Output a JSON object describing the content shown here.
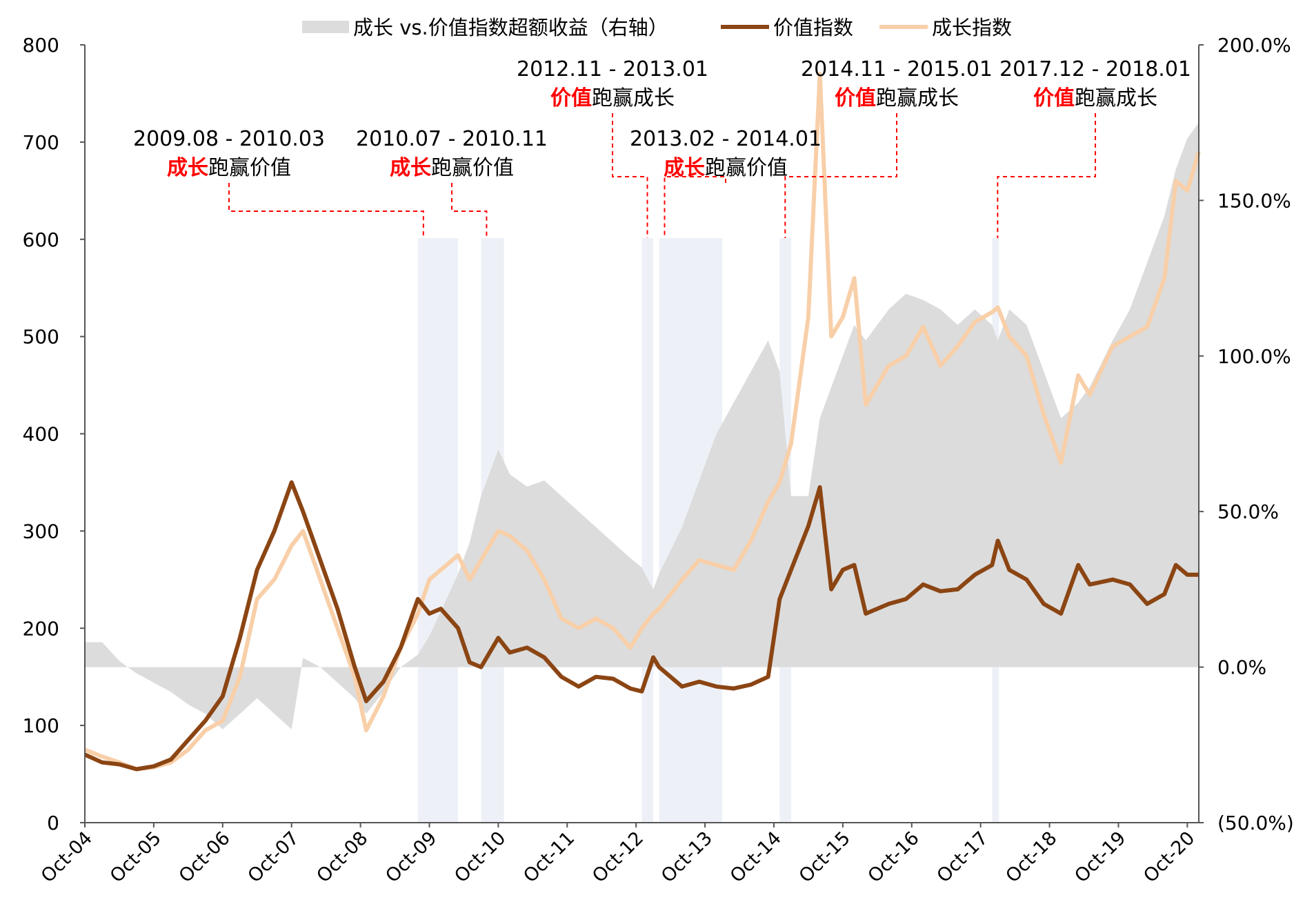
{
  "chart_data": {
    "type": "line",
    "title": "",
    "legend": {
      "placement": "top",
      "items": [
        {
          "label": "成长 vs.价值指数超额收益（右轴）",
          "kind": "area",
          "color": "#dcdcdc"
        },
        {
          "label": "价值指数",
          "kind": "line",
          "color": "#8b4513"
        },
        {
          "label": "成长指数",
          "kind": "line",
          "color": "#f8cfa8"
        }
      ]
    },
    "x_axis": {
      "type": "date",
      "range": [
        "2004-10",
        "2020-12"
      ],
      "tick_labels": [
        "Oct-04",
        "Oct-05",
        "Oct-06",
        "Oct-07",
        "Oct-08",
        "Oct-09",
        "Oct-10",
        "Oct-11",
        "Oct-12",
        "Oct-13",
        "Oct-14",
        "Oct-15",
        "Oct-16",
        "Oct-17",
        "Oct-18",
        "Oct-19",
        "Oct-20"
      ]
    },
    "y_axis_left": {
      "range": [
        0,
        800
      ],
      "ticks": [
        0,
        100,
        200,
        300,
        400,
        500,
        600,
        700,
        800
      ],
      "tick_labels": [
        "0",
        "100",
        "200",
        "300",
        "400",
        "500",
        "600",
        "700",
        "800"
      ]
    },
    "y_axis_right": {
      "range": [
        -0.5,
        2.0
      ],
      "ticks": [
        -0.5,
        0,
        0.5,
        1.0,
        1.5,
        2.0
      ],
      "tick_labels": [
        "(50.0%)",
        "0.0%",
        "50.0%",
        "100.0%",
        "150.0%",
        "200.0%"
      ]
    },
    "grid": false,
    "series": [
      {
        "name": "价值指数",
        "axis": "left",
        "color": "#8b4513",
        "points": [
          [
            "2004-10",
            70
          ],
          [
            "2005-01",
            62
          ],
          [
            "2005-04",
            60
          ],
          [
            "2005-07",
            55
          ],
          [
            "2005-10",
            58
          ],
          [
            "2006-01",
            65
          ],
          [
            "2006-04",
            85
          ],
          [
            "2006-07",
            105
          ],
          [
            "2006-10",
            130
          ],
          [
            "2007-01",
            190
          ],
          [
            "2007-04",
            260
          ],
          [
            "2007-07",
            300
          ],
          [
            "2007-10",
            350
          ],
          [
            "2007-12",
            320
          ],
          [
            "2008-03",
            270
          ],
          [
            "2008-06",
            220
          ],
          [
            "2008-09",
            160
          ],
          [
            "2008-11",
            125
          ],
          [
            "2009-02",
            145
          ],
          [
            "2009-05",
            180
          ],
          [
            "2009-08",
            230
          ],
          [
            "2009-10",
            215
          ],
          [
            "2009-12",
            220
          ],
          [
            "2010-03",
            200
          ],
          [
            "2010-05",
            165
          ],
          [
            "2010-07",
            160
          ],
          [
            "2010-10",
            190
          ],
          [
            "2010-12",
            175
          ],
          [
            "2011-03",
            180
          ],
          [
            "2011-06",
            170
          ],
          [
            "2011-09",
            150
          ],
          [
            "2011-12",
            140
          ],
          [
            "2012-03",
            150
          ],
          [
            "2012-06",
            148
          ],
          [
            "2012-09",
            138
          ],
          [
            "2012-11",
            135
          ],
          [
            "2013-01",
            170
          ],
          [
            "2013-02",
            160
          ],
          [
            "2013-06",
            140
          ],
          [
            "2013-09",
            145
          ],
          [
            "2013-12",
            140
          ],
          [
            "2014-03",
            138
          ],
          [
            "2014-06",
            142
          ],
          [
            "2014-09",
            150
          ],
          [
            "2014-11",
            230
          ],
          [
            "2015-01",
            260
          ],
          [
            "2015-04",
            305
          ],
          [
            "2015-06",
            345
          ],
          [
            "2015-08",
            240
          ],
          [
            "2015-10",
            260
          ],
          [
            "2015-12",
            265
          ],
          [
            "2016-02",
            215
          ],
          [
            "2016-06",
            225
          ],
          [
            "2016-09",
            230
          ],
          [
            "2016-12",
            245
          ],
          [
            "2017-03",
            238
          ],
          [
            "2017-06",
            240
          ],
          [
            "2017-09",
            255
          ],
          [
            "2017-12",
            265
          ],
          [
            "2018-01",
            290
          ],
          [
            "2018-03",
            260
          ],
          [
            "2018-06",
            250
          ],
          [
            "2018-09",
            225
          ],
          [
            "2018-12",
            215
          ],
          [
            "2019-03",
            265
          ],
          [
            "2019-05",
            245
          ],
          [
            "2019-09",
            250
          ],
          [
            "2019-12",
            245
          ],
          [
            "2020-03",
            225
          ],
          [
            "2020-06",
            235
          ],
          [
            "2020-08",
            265
          ],
          [
            "2020-10",
            255
          ],
          [
            "2020-12",
            255
          ]
        ]
      },
      {
        "name": "成长指数",
        "axis": "left",
        "color": "#f8cfa8",
        "points": [
          [
            "2004-10",
            75
          ],
          [
            "2005-01",
            68
          ],
          [
            "2005-04",
            62
          ],
          [
            "2005-07",
            55
          ],
          [
            "2005-10",
            57
          ],
          [
            "2006-01",
            62
          ],
          [
            "2006-04",
            75
          ],
          [
            "2006-07",
            95
          ],
          [
            "2006-10",
            105
          ],
          [
            "2007-01",
            150
          ],
          [
            "2007-04",
            230
          ],
          [
            "2007-07",
            250
          ],
          [
            "2007-10",
            285
          ],
          [
            "2007-12",
            300
          ],
          [
            "2008-03",
            250
          ],
          [
            "2008-06",
            200
          ],
          [
            "2008-09",
            150
          ],
          [
            "2008-11",
            95
          ],
          [
            "2009-02",
            130
          ],
          [
            "2009-05",
            180
          ],
          [
            "2009-08",
            215
          ],
          [
            "2009-10",
            250
          ],
          [
            "2009-12",
            260
          ],
          [
            "2010-03",
            275
          ],
          [
            "2010-05",
            250
          ],
          [
            "2010-07",
            270
          ],
          [
            "2010-10",
            300
          ],
          [
            "2010-12",
            295
          ],
          [
            "2011-03",
            280
          ],
          [
            "2011-06",
            250
          ],
          [
            "2011-09",
            210
          ],
          [
            "2011-12",
            200
          ],
          [
            "2012-03",
            210
          ],
          [
            "2012-06",
            200
          ],
          [
            "2012-09",
            180
          ],
          [
            "2012-11",
            200
          ],
          [
            "2013-01",
            215
          ],
          [
            "2013-02",
            220
          ],
          [
            "2013-06",
            250
          ],
          [
            "2013-09",
            270
          ],
          [
            "2013-12",
            265
          ],
          [
            "2014-03",
            260
          ],
          [
            "2014-06",
            290
          ],
          [
            "2014-09",
            330
          ],
          [
            "2014-11",
            350
          ],
          [
            "2015-01",
            390
          ],
          [
            "2015-04",
            520
          ],
          [
            "2015-06",
            770
          ],
          [
            "2015-08",
            500
          ],
          [
            "2015-10",
            520
          ],
          [
            "2015-12",
            560
          ],
          [
            "2016-02",
            430
          ],
          [
            "2016-06",
            470
          ],
          [
            "2016-09",
            480
          ],
          [
            "2016-12",
            510
          ],
          [
            "2017-03",
            470
          ],
          [
            "2017-06",
            490
          ],
          [
            "2017-09",
            515
          ],
          [
            "2017-12",
            525
          ],
          [
            "2018-01",
            530
          ],
          [
            "2018-03",
            500
          ],
          [
            "2018-06",
            480
          ],
          [
            "2018-09",
            420
          ],
          [
            "2018-12",
            370
          ],
          [
            "2019-03",
            460
          ],
          [
            "2019-05",
            440
          ],
          [
            "2019-09",
            490
          ],
          [
            "2019-12",
            500
          ],
          [
            "2020-03",
            510
          ],
          [
            "2020-06",
            560
          ],
          [
            "2020-08",
            660
          ],
          [
            "2020-10",
            650
          ],
          [
            "2020-12",
            690
          ]
        ]
      },
      {
        "name": "成长 vs.价值指数超额收益（右轴）",
        "axis": "right",
        "type": "area",
        "color": "#dcdcdc",
        "points": [
          [
            "2004-10",
            0.08
          ],
          [
            "2005-01",
            0.08
          ],
          [
            "2005-04",
            0.02
          ],
          [
            "2005-07",
            -0.02
          ],
          [
            "2005-10",
            -0.05
          ],
          [
            "2006-01",
            -0.08
          ],
          [
            "2006-04",
            -0.12
          ],
          [
            "2006-07",
            -0.15
          ],
          [
            "2006-10",
            -0.2
          ],
          [
            "2007-01",
            -0.15
          ],
          [
            "2007-04",
            -0.1
          ],
          [
            "2007-07",
            -0.15
          ],
          [
            "2007-10",
            -0.2
          ],
          [
            "2007-12",
            0.03
          ],
          [
            "2008-03",
            0.0
          ],
          [
            "2008-06",
            -0.05
          ],
          [
            "2008-09",
            -0.1
          ],
          [
            "2008-11",
            -0.15
          ],
          [
            "2009-02",
            -0.08
          ],
          [
            "2009-05",
            0.0
          ],
          [
            "2009-08",
            0.04
          ],
          [
            "2009-10",
            0.1
          ],
          [
            "2009-12",
            0.18
          ],
          [
            "2010-03",
            0.3
          ],
          [
            "2010-05",
            0.4
          ],
          [
            "2010-07",
            0.55
          ],
          [
            "2010-10",
            0.7
          ],
          [
            "2010-12",
            0.62
          ],
          [
            "2011-03",
            0.58
          ],
          [
            "2011-06",
            0.6
          ],
          [
            "2011-09",
            0.55
          ],
          [
            "2011-12",
            0.5
          ],
          [
            "2012-03",
            0.45
          ],
          [
            "2012-06",
            0.4
          ],
          [
            "2012-09",
            0.35
          ],
          [
            "2012-11",
            0.32
          ],
          [
            "2013-01",
            0.25
          ],
          [
            "2013-02",
            0.3
          ],
          [
            "2013-06",
            0.45
          ],
          [
            "2013-09",
            0.6
          ],
          [
            "2013-12",
            0.75
          ],
          [
            "2014-03",
            0.85
          ],
          [
            "2014-06",
            0.95
          ],
          [
            "2014-09",
            1.05
          ],
          [
            "2014-11",
            0.95
          ],
          [
            "2015-01",
            0.55
          ],
          [
            "2015-04",
            0.55
          ],
          [
            "2015-06",
            0.8
          ],
          [
            "2015-08",
            0.9
          ],
          [
            "2015-10",
            1.0
          ],
          [
            "2015-12",
            1.1
          ],
          [
            "2016-02",
            1.05
          ],
          [
            "2016-06",
            1.15
          ],
          [
            "2016-09",
            1.2
          ],
          [
            "2016-12",
            1.18
          ],
          [
            "2017-03",
            1.15
          ],
          [
            "2017-06",
            1.1
          ],
          [
            "2017-09",
            1.15
          ],
          [
            "2017-12",
            1.1
          ],
          [
            "2018-01",
            1.05
          ],
          [
            "2018-03",
            1.15
          ],
          [
            "2018-06",
            1.1
          ],
          [
            "2018-09",
            0.95
          ],
          [
            "2018-12",
            0.8
          ],
          [
            "2019-03",
            0.85
          ],
          [
            "2019-05",
            0.9
          ],
          [
            "2019-09",
            1.05
          ],
          [
            "2019-12",
            1.15
          ],
          [
            "2020-03",
            1.3
          ],
          [
            "2020-06",
            1.45
          ],
          [
            "2020-08",
            1.6
          ],
          [
            "2020-10",
            1.7
          ],
          [
            "2020-12",
            1.75
          ]
        ]
      }
    ],
    "shaded_periods": [
      {
        "start": "2009-08",
        "end": "2010-03",
        "color": "#edf1f7"
      },
      {
        "start": "2010-07",
        "end": "2010-11",
        "color": "#edf1f7"
      },
      {
        "start": "2012-11",
        "end": "2013-01",
        "color": "#edf1f7"
      },
      {
        "start": "2013-02",
        "end": "2014-01",
        "color": "#edf1f7"
      },
      {
        "start": "2014-11",
        "end": "2015-01",
        "color": "#edf1f7"
      },
      {
        "start": "2017-12",
        "end": "2018-01",
        "color": "#edf1f7"
      }
    ],
    "annotations": [
      {
        "date_text": "2009.08 - 2010.03",
        "highlight": "成长",
        "rest": "跑赢价值",
        "anchor": "2009-08"
      },
      {
        "date_text": "2010.07 - 2010.11",
        "highlight": "成长",
        "rest": "跑赢价值",
        "anchor": "2010-07"
      },
      {
        "date_text": "2012.11 - 2013.01",
        "highlight": "价值",
        "rest": "跑赢成长",
        "anchor": "2012-11"
      },
      {
        "date_text": "2013.02 - 2014.01",
        "highlight": "成长",
        "rest": "跑赢价值",
        "anchor": "2013-02"
      },
      {
        "date_text": "2014.11 - 2015.01",
        "highlight": "价值",
        "rest": "跑赢成长",
        "anchor": "2014-11"
      },
      {
        "date_text": "2017.12 - 2018.01",
        "highlight": "价值",
        "rest": "跑赢成长",
        "anchor": "2017-12"
      }
    ],
    "colors": {
      "axis": "#555555",
      "highlight_text": "#ff0000",
      "dashed_line": "#ff0000"
    }
  }
}
